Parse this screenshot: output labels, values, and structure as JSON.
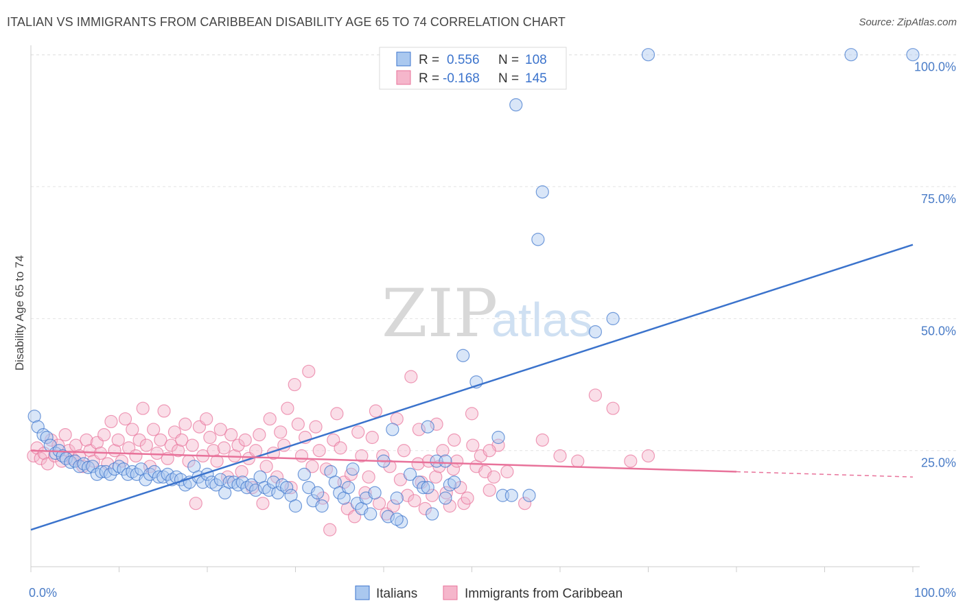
{
  "title": "ITALIAN VS IMMIGRANTS FROM CARIBBEAN DISABILITY AGE 65 TO 74 CORRELATION CHART",
  "source": "Source: ZipAtlas.com",
  "watermark": {
    "zip": "ZIP",
    "atlas": "atlas"
  },
  "colors": {
    "blue": "#3b73cc",
    "blue_fill": "#aac8ef",
    "pink": "#e8729a",
    "pink_fill": "#f5b6cb"
  },
  "legend": {
    "r_label": "R =",
    "n_label": "N =",
    "rows": [
      {
        "r": "0.556",
        "n": "108"
      },
      {
        "r": "-0.168",
        "n": "145"
      }
    ]
  },
  "chart_data": {
    "type": "scatter",
    "xlabel": "",
    "ylabel": "Disability Age 65 to 74",
    "xlim": [
      0,
      100
    ],
    "ylim": [
      3,
      101
    ],
    "x_tick_labels": [
      "0.0%",
      "100.0%"
    ],
    "y_ticks": [
      25,
      50,
      75,
      100
    ],
    "y_tick_labels": [
      "25.0%",
      "50.0%",
      "75.0%",
      "100.0%"
    ],
    "grid": true,
    "legend_position": "top-center",
    "series": [
      {
        "name": "Italians",
        "color": "#3b73cc",
        "trend": {
          "x": [
            0,
            100
          ],
          "y": [
            10,
            64
          ]
        },
        "points": [
          [
            0.4,
            31.5
          ],
          [
            0.8,
            29.5
          ],
          [
            1.4,
            28
          ],
          [
            1.8,
            27.5
          ],
          [
            2.2,
            26
          ],
          [
            2.8,
            24.5
          ],
          [
            3.2,
            25
          ],
          [
            3.6,
            24
          ],
          [
            4,
            23.5
          ],
          [
            4.5,
            22.8
          ],
          [
            5,
            23
          ],
          [
            5.5,
            22
          ],
          [
            6,
            22.5
          ],
          [
            6.5,
            21.8
          ],
          [
            7,
            22
          ],
          [
            7.5,
            20.5
          ],
          [
            8,
            21
          ],
          [
            8.5,
            21
          ],
          [
            9,
            20.5
          ],
          [
            9.5,
            21.5
          ],
          [
            10,
            22
          ],
          [
            10.5,
            21.5
          ],
          [
            11,
            20.5
          ],
          [
            11.5,
            21
          ],
          [
            12,
            20.5
          ],
          [
            12.5,
            21.5
          ],
          [
            13,
            19.5
          ],
          [
            13.5,
            20.5
          ],
          [
            14,
            21
          ],
          [
            14.5,
            20
          ],
          [
            15,
            20
          ],
          [
            15.5,
            20.5
          ],
          [
            16,
            19.5
          ],
          [
            16.5,
            20
          ],
          [
            17,
            19.5
          ],
          [
            17.5,
            18.5
          ],
          [
            18,
            19
          ],
          [
            18.5,
            22
          ],
          [
            19,
            20
          ],
          [
            19.5,
            19
          ],
          [
            20,
            20.5
          ],
          [
            20.5,
            19
          ],
          [
            21,
            18.5
          ],
          [
            21.5,
            19.5
          ],
          [
            22,
            17
          ],
          [
            22.5,
            19
          ],
          [
            23,
            19
          ],
          [
            23.5,
            18.5
          ],
          [
            24,
            19
          ],
          [
            24.5,
            18
          ],
          [
            25,
            18.5
          ],
          [
            25.5,
            17.5
          ],
          [
            26,
            20
          ],
          [
            26.5,
            18
          ],
          [
            27,
            17.5
          ],
          [
            27.5,
            19
          ],
          [
            28,
            17
          ],
          [
            28.5,
            18.5
          ],
          [
            29,
            18
          ],
          [
            29.5,
            16.5
          ],
          [
            30,
            14.5
          ],
          [
            31,
            20.5
          ],
          [
            31.5,
            18
          ],
          [
            32,
            15.5
          ],
          [
            32.5,
            17
          ],
          [
            33,
            14.5
          ],
          [
            34,
            21
          ],
          [
            34.5,
            19
          ],
          [
            35,
            17
          ],
          [
            35.5,
            16
          ],
          [
            36,
            18
          ],
          [
            36.5,
            21.5
          ],
          [
            37,
            15
          ],
          [
            37.5,
            14
          ],
          [
            38,
            16
          ],
          [
            38.5,
            13
          ],
          [
            39,
            17
          ],
          [
            40,
            23
          ],
          [
            40.5,
            12.5
          ],
          [
            41,
            29
          ],
          [
            41.5,
            16
          ],
          [
            42,
            11.5
          ],
          [
            43,
            20.5
          ],
          [
            44,
            19
          ],
          [
            44.5,
            18
          ],
          [
            45,
            29.5
          ],
          [
            45.5,
            13
          ],
          [
            46,
            23
          ],
          [
            47,
            23
          ],
          [
            47.5,
            18.5
          ],
          [
            48,
            19
          ],
          [
            49,
            43
          ],
          [
            50.5,
            38
          ],
          [
            53,
            27.5
          ],
          [
            53.5,
            16.5
          ],
          [
            54.5,
            16.5
          ],
          [
            55,
            90.5
          ],
          [
            56.5,
            16.5
          ],
          [
            57.5,
            65
          ],
          [
            58,
            74
          ],
          [
            64,
            47.5
          ],
          [
            66,
            50
          ],
          [
            70,
            100
          ],
          [
            93,
            100
          ],
          [
            100,
            100
          ],
          [
            41.5,
            12
          ],
          [
            47,
            16
          ],
          [
            45,
            18
          ]
        ]
      },
      {
        "name": "Immigrants from Caribbean",
        "color": "#e8729a",
        "trend": {
          "x": [
            0,
            80
          ],
          "y": [
            25,
            21
          ]
        },
        "trend_dashed": {
          "x": [
            80,
            100
          ],
          "y": [
            21,
            20
          ]
        },
        "points": [
          [
            0.3,
            24
          ],
          [
            0.7,
            25.5
          ],
          [
            1.1,
            23.5
          ],
          [
            1.5,
            24.5
          ],
          [
            1.9,
            22.5
          ],
          [
            2.3,
            27
          ],
          [
            2.7,
            24
          ],
          [
            3.1,
            26
          ],
          [
            3.5,
            23
          ],
          [
            3.9,
            28
          ],
          [
            4.3,
            25
          ],
          [
            4.7,
            23.5
          ],
          [
            5.1,
            26
          ],
          [
            5.5,
            24
          ],
          [
            5.9,
            22
          ],
          [
            6.3,
            27
          ],
          [
            6.7,
            25
          ],
          [
            7.1,
            23
          ],
          [
            7.5,
            26.5
          ],
          [
            7.9,
            24.5
          ],
          [
            8.3,
            28
          ],
          [
            8.7,
            22.5
          ],
          [
            9.1,
            30.5
          ],
          [
            9.5,
            25
          ],
          [
            9.9,
            27
          ],
          [
            10.3,
            23
          ],
          [
            10.7,
            31
          ],
          [
            11.1,
            25.5
          ],
          [
            11.5,
            29
          ],
          [
            11.9,
            24
          ],
          [
            12.3,
            27
          ],
          [
            12.7,
            33
          ],
          [
            13.1,
            26
          ],
          [
            13.5,
            22
          ],
          [
            13.9,
            29
          ],
          [
            14.3,
            24.5
          ],
          [
            14.7,
            27
          ],
          [
            15.1,
            32.5
          ],
          [
            15.5,
            23.5
          ],
          [
            15.9,
            26
          ],
          [
            16.3,
            28.5
          ],
          [
            16.7,
            25
          ],
          [
            17.1,
            27
          ],
          [
            17.5,
            30
          ],
          [
            17.9,
            23
          ],
          [
            18.3,
            26
          ],
          [
            18.7,
            15
          ],
          [
            19.1,
            29.5
          ],
          [
            19.5,
            24
          ],
          [
            19.9,
            31
          ],
          [
            20.3,
            27.5
          ],
          [
            20.7,
            25
          ],
          [
            21.1,
            23
          ],
          [
            21.5,
            29
          ],
          [
            21.9,
            25.5
          ],
          [
            22.3,
            20
          ],
          [
            22.7,
            28
          ],
          [
            23.1,
            24
          ],
          [
            23.5,
            26
          ],
          [
            23.9,
            21
          ],
          [
            24.3,
            27
          ],
          [
            24.7,
            23.5
          ],
          [
            25.1,
            18
          ],
          [
            25.5,
            25
          ],
          [
            25.9,
            28
          ],
          [
            26.3,
            15
          ],
          [
            26.7,
            22
          ],
          [
            27.1,
            31
          ],
          [
            27.5,
            24.5
          ],
          [
            27.9,
            20
          ],
          [
            28.3,
            28.5
          ],
          [
            28.7,
            26
          ],
          [
            29.1,
            33
          ],
          [
            29.5,
            18
          ],
          [
            29.9,
            37.5
          ],
          [
            30.3,
            30
          ],
          [
            30.7,
            24
          ],
          [
            31.1,
            27.5
          ],
          [
            31.5,
            40
          ],
          [
            31.9,
            22
          ],
          [
            32.3,
            29.5
          ],
          [
            32.7,
            25
          ],
          [
            33.1,
            16
          ],
          [
            33.5,
            21.5
          ],
          [
            33.9,
            10
          ],
          [
            34.3,
            27
          ],
          [
            34.7,
            32
          ],
          [
            35.1,
            25.5
          ],
          [
            35.5,
            19
          ],
          [
            35.9,
            14
          ],
          [
            36.3,
            20.5
          ],
          [
            36.7,
            12.5
          ],
          [
            37.1,
            28.5
          ],
          [
            37.5,
            24
          ],
          [
            37.9,
            17
          ],
          [
            38.3,
            20
          ],
          [
            38.7,
            27.5
          ],
          [
            39.1,
            32.5
          ],
          [
            39.5,
            15
          ],
          [
            39.9,
            24
          ],
          [
            40.3,
            13
          ],
          [
            40.7,
            22
          ],
          [
            41.1,
            14.5
          ],
          [
            41.5,
            31
          ],
          [
            41.9,
            19.5
          ],
          [
            42.3,
            25
          ],
          [
            42.7,
            16.5
          ],
          [
            43.1,
            39
          ],
          [
            43.5,
            15.5
          ],
          [
            43.9,
            22.5
          ],
          [
            44.3,
            19
          ],
          [
            44.7,
            14
          ],
          [
            45.1,
            23
          ],
          [
            45.5,
            16.5
          ],
          [
            45.9,
            20
          ],
          [
            46.3,
            22
          ],
          [
            46.7,
            25
          ],
          [
            47.1,
            17
          ],
          [
            47.5,
            14.5
          ],
          [
            47.9,
            21.5
          ],
          [
            48.3,
            23
          ],
          [
            48.7,
            18
          ],
          [
            49.1,
            15
          ],
          [
            49.5,
            16
          ],
          [
            50.1,
            26
          ],
          [
            50.5,
            22
          ],
          [
            51,
            24
          ],
          [
            51.5,
            21
          ],
          [
            52,
            17.5
          ],
          [
            52.5,
            20
          ],
          [
            53,
            26
          ],
          [
            54,
            21
          ],
          [
            56,
            15
          ],
          [
            58,
            27
          ],
          [
            60,
            24
          ],
          [
            62,
            23
          ],
          [
            64,
            35.5
          ],
          [
            66,
            33
          ],
          [
            68,
            23
          ],
          [
            70,
            24
          ],
          [
            44,
            29
          ],
          [
            46,
            30
          ],
          [
            48,
            27
          ],
          [
            50,
            32
          ],
          [
            52,
            25
          ]
        ]
      }
    ]
  },
  "bottom_legend": [
    "Italians",
    "Immigrants from Caribbean"
  ]
}
